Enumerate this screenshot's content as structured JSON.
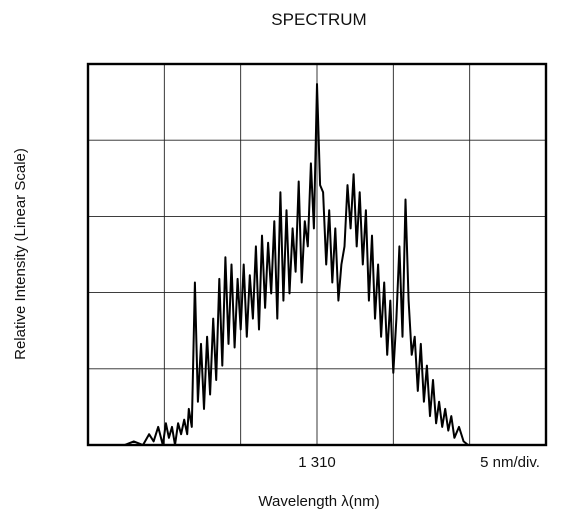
{
  "chart_data": {
    "type": "line",
    "title": "SPECTRUM",
    "xlabel": "Wavelength  λ(nm)",
    "ylabel": "Relative Intensity  (Linear Scale)",
    "x_tick_labels": [
      {
        "value": 1310,
        "label": "1 310"
      }
    ],
    "x_scale_note": "5 nm/div.",
    "x_unit_per_division": 5,
    "xlim": [
      1295,
      1325
    ],
    "ylim": [
      0,
      1
    ],
    "y_scale": "linear",
    "grid": true,
    "grid_divisions": {
      "x": 6,
      "y": 5
    },
    "legend": "none",
    "series": [
      {
        "color": "#000000",
        "x": [
          1297.4,
          1298.0,
          1298.6,
          1299.0,
          1299.3,
          1299.6,
          1299.9,
          1300.1,
          1300.3,
          1300.5,
          1300.7,
          1300.9,
          1301.1,
          1301.3,
          1301.5,
          1301.6,
          1301.8,
          1302.0,
          1302.2,
          1302.4,
          1302.6,
          1302.8,
          1303.0,
          1303.2,
          1303.4,
          1303.6,
          1303.8,
          1304.0,
          1304.2,
          1304.4,
          1304.6,
          1304.8,
          1305.0,
          1305.2,
          1305.4,
          1305.6,
          1305.8,
          1306.0,
          1306.2,
          1306.4,
          1306.6,
          1306.8,
          1307.0,
          1307.2,
          1307.4,
          1307.6,
          1307.8,
          1308.0,
          1308.2,
          1308.4,
          1308.6,
          1308.8,
          1309.0,
          1309.2,
          1309.4,
          1309.6,
          1309.8,
          1310.0,
          1310.2,
          1310.4,
          1310.6,
          1310.8,
          1311.0,
          1311.2,
          1311.4,
          1311.6,
          1311.8,
          1312.0,
          1312.2,
          1312.4,
          1312.6,
          1312.8,
          1313.0,
          1313.2,
          1313.4,
          1313.6,
          1313.8,
          1314.0,
          1314.2,
          1314.4,
          1314.6,
          1314.8,
          1315.0,
          1315.2,
          1315.4,
          1315.6,
          1315.8,
          1316.0,
          1316.2,
          1316.4,
          1316.6,
          1316.8,
          1317.0,
          1317.2,
          1317.4,
          1317.6,
          1317.8,
          1318.0,
          1318.2,
          1318.4,
          1318.6,
          1318.8,
          1319.0,
          1319.3,
          1319.6,
          1319.9,
          1320.3,
          1320.8
        ],
        "y": [
          0.0,
          0.01,
          0.0,
          0.03,
          0.01,
          0.05,
          0.0,
          0.06,
          0.02,
          0.05,
          0.0,
          0.06,
          0.03,
          0.07,
          0.03,
          0.1,
          0.05,
          0.45,
          0.12,
          0.28,
          0.1,
          0.3,
          0.14,
          0.35,
          0.18,
          0.46,
          0.22,
          0.52,
          0.28,
          0.5,
          0.27,
          0.46,
          0.32,
          0.5,
          0.3,
          0.47,
          0.35,
          0.55,
          0.32,
          0.58,
          0.38,
          0.56,
          0.42,
          0.62,
          0.35,
          0.7,
          0.4,
          0.65,
          0.42,
          0.6,
          0.48,
          0.73,
          0.45,
          0.62,
          0.55,
          0.78,
          0.6,
          1.0,
          0.72,
          0.7,
          0.5,
          0.65,
          0.45,
          0.6,
          0.4,
          0.5,
          0.55,
          0.72,
          0.6,
          0.75,
          0.55,
          0.7,
          0.5,
          0.65,
          0.4,
          0.58,
          0.35,
          0.5,
          0.3,
          0.45,
          0.25,
          0.4,
          0.2,
          0.35,
          0.55,
          0.3,
          0.68,
          0.4,
          0.25,
          0.3,
          0.15,
          0.28,
          0.12,
          0.22,
          0.08,
          0.18,
          0.06,
          0.12,
          0.05,
          0.1,
          0.04,
          0.08,
          0.02,
          0.05,
          0.01,
          0.0,
          0.0,
          0.0
        ]
      }
    ]
  }
}
